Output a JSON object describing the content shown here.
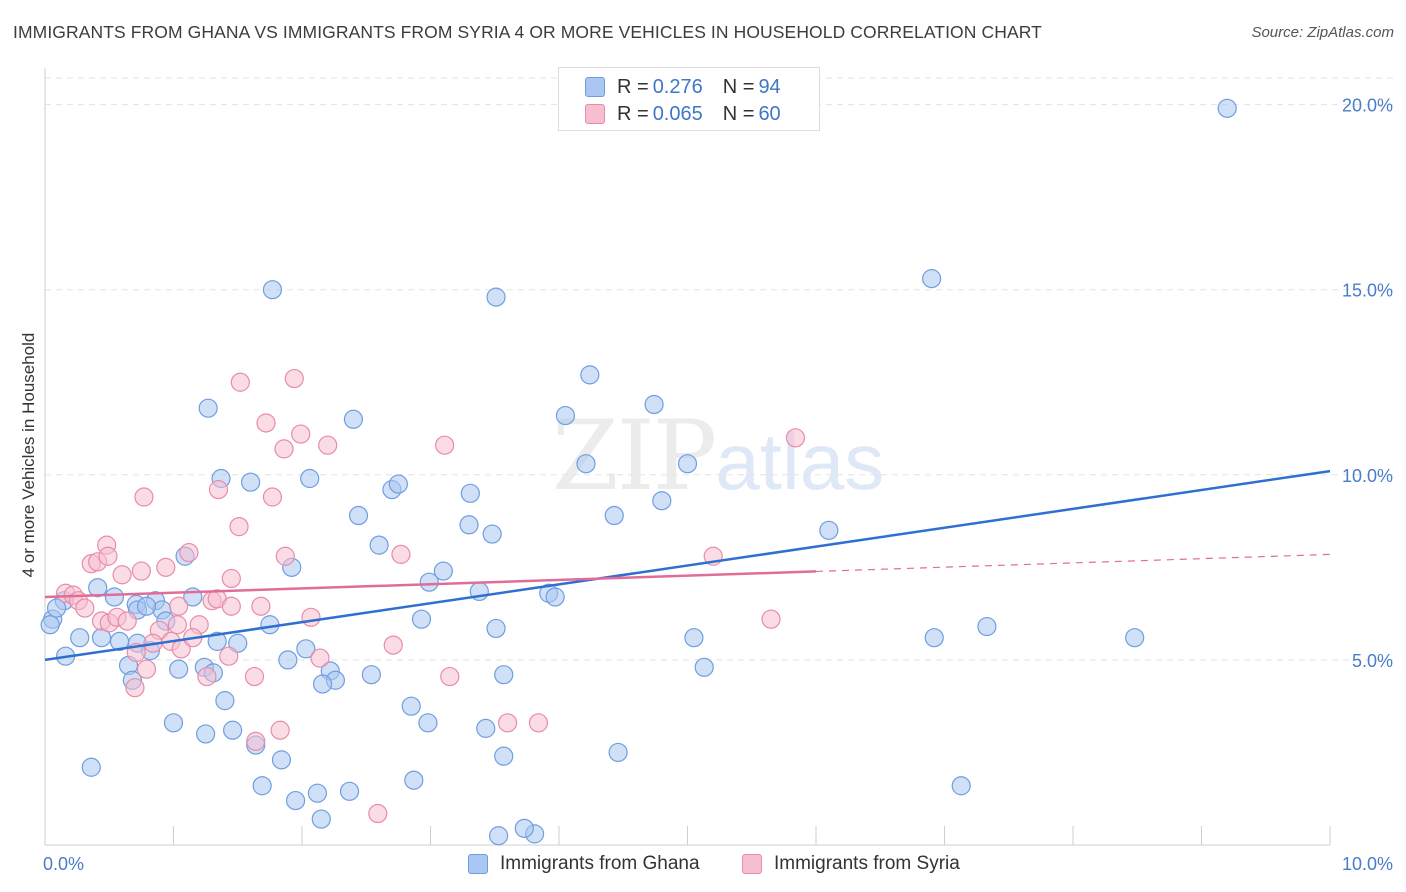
{
  "title": "IMMIGRANTS FROM GHANA VS IMMIGRANTS FROM SYRIA 4 OR MORE VEHICLES IN HOUSEHOLD CORRELATION CHART",
  "source": "Source: ZipAtlas.com",
  "watermark": {
    "zip": "ZIP",
    "atlas": "atlas"
  },
  "legend": {
    "rows": [
      {
        "r_label": "R =",
        "r_value": "0.276",
        "n_label": "N =",
        "n_value": "94"
      },
      {
        "r_label": "R =",
        "r_value": "0.065",
        "n_label": "N =",
        "n_value": "60"
      }
    ]
  },
  "colors": {
    "ghana_fill": "#a9c7f0",
    "ghana_stroke": "#6f9ee0",
    "ghana_line": "#2f6fcf",
    "syria_fill": "#f6bfd0",
    "syria_stroke": "#e98bab",
    "syria_line": "#e06d97",
    "grid": "#e3e3e3",
    "tick_label": "#4a7cc8"
  },
  "chart_data": {
    "type": "scatter",
    "title": "IMMIGRANTS FROM GHANA VS IMMIGRANTS FROM SYRIA 4 OR MORE VEHICLES IN HOUSEHOLD CORRELATION CHART",
    "xlabel": "",
    "ylabel": "4 or more Vehicles in Household",
    "xlim": [
      0,
      10
    ],
    "ylim": [
      0,
      20.8
    ],
    "x_tick_labels": [
      "0.0%",
      "10.0%"
    ],
    "y_ticks": [
      5,
      10,
      15,
      20
    ],
    "y_tick_labels": [
      "5.0%",
      "10.0%",
      "15.0%",
      "20.0%"
    ],
    "grid": true,
    "legend_position": "top-center",
    "series": [
      {
        "name": "Immigrants from Ghana",
        "trend": {
          "x": [
            0,
            10
          ],
          "y": [
            5.0,
            10.1
          ],
          "dashed_from": null
        },
        "points": [
          [
            9.2,
            19.9
          ],
          [
            6.9,
            15.3
          ],
          [
            1.77,
            15.0
          ],
          [
            3.51,
            14.8
          ],
          [
            4.24,
            12.7
          ],
          [
            1.27,
            11.8
          ],
          [
            4.74,
            11.9
          ],
          [
            4.05,
            11.6
          ],
          [
            2.4,
            11.5
          ],
          [
            1.37,
            9.9
          ],
          [
            1.6,
            9.8
          ],
          [
            2.06,
            9.9
          ],
          [
            2.7,
            9.6
          ],
          [
            2.75,
            9.75
          ],
          [
            3.31,
            9.5
          ],
          [
            4.21,
            10.3
          ],
          [
            4.8,
            9.3
          ],
          [
            5.0,
            10.3
          ],
          [
            2.44,
            8.9
          ],
          [
            3.3,
            8.65
          ],
          [
            3.48,
            8.4
          ],
          [
            4.43,
            8.9
          ],
          [
            6.1,
            8.5
          ],
          [
            1.09,
            7.8
          ],
          [
            2.6,
            8.1
          ],
          [
            1.92,
            7.5
          ],
          [
            3.1,
            7.4
          ],
          [
            2.99,
            7.1
          ],
          [
            3.38,
            6.85
          ],
          [
            3.92,
            6.8
          ],
          [
            3.97,
            6.7
          ],
          [
            0.41,
            6.95
          ],
          [
            0.54,
            6.7
          ],
          [
            0.15,
            6.6
          ],
          [
            0.71,
            6.5
          ],
          [
            0.86,
            6.6
          ],
          [
            0.91,
            6.35
          ],
          [
            1.15,
            6.7
          ],
          [
            0.94,
            6.05
          ],
          [
            0.72,
            6.35
          ],
          [
            0.79,
            6.45
          ],
          [
            2.93,
            6.1
          ],
          [
            3.51,
            5.85
          ],
          [
            0.27,
            5.6
          ],
          [
            0.44,
            5.6
          ],
          [
            0.58,
            5.5
          ],
          [
            0.72,
            5.45
          ],
          [
            0.82,
            5.25
          ],
          [
            1.34,
            5.5
          ],
          [
            1.5,
            5.45
          ],
          [
            1.75,
            5.95
          ],
          [
            2.03,
            5.3
          ],
          [
            5.05,
            5.6
          ],
          [
            6.92,
            5.6
          ],
          [
            7.33,
            5.9
          ],
          [
            8.48,
            5.6
          ],
          [
            0.16,
            5.1
          ],
          [
            0.65,
            4.85
          ],
          [
            1.04,
            4.75
          ],
          [
            1.24,
            4.8
          ],
          [
            1.31,
            4.65
          ],
          [
            1.89,
            5.0
          ],
          [
            2.22,
            4.7
          ],
          [
            2.26,
            4.45
          ],
          [
            2.16,
            4.35
          ],
          [
            2.54,
            4.6
          ],
          [
            3.57,
            4.6
          ],
          [
            5.13,
            4.8
          ],
          [
            0.68,
            4.45
          ],
          [
            1.4,
            3.9
          ],
          [
            2.85,
            3.75
          ],
          [
            1.0,
            3.3
          ],
          [
            1.25,
            3.0
          ],
          [
            1.46,
            3.1
          ],
          [
            1.64,
            2.7
          ],
          [
            2.98,
            3.3
          ],
          [
            3.43,
            3.15
          ],
          [
            1.84,
            2.3
          ],
          [
            3.57,
            2.4
          ],
          [
            4.46,
            2.5
          ],
          [
            0.36,
            2.1
          ],
          [
            1.69,
            1.6
          ],
          [
            1.95,
            1.2
          ],
          [
            2.12,
            1.4
          ],
          [
            2.37,
            1.45
          ],
          [
            2.87,
            1.75
          ],
          [
            7.13,
            1.6
          ],
          [
            2.15,
            0.7
          ],
          [
            3.81,
            0.3
          ],
          [
            3.73,
            0.45
          ],
          [
            3.53,
            0.25
          ],
          [
            0.06,
            6.1
          ],
          [
            0.04,
            5.95
          ],
          [
            0.09,
            6.4
          ]
        ]
      },
      {
        "name": "Immigrants from Syria",
        "trend": {
          "x": [
            0,
            10
          ],
          "y": [
            6.7,
            7.85
          ],
          "dashed_from": 6.0
        },
        "points": [
          [
            1.52,
            12.5
          ],
          [
            1.94,
            12.6
          ],
          [
            1.72,
            11.4
          ],
          [
            1.99,
            11.1
          ],
          [
            2.2,
            10.8
          ],
          [
            1.86,
            10.7
          ],
          [
            3.11,
            10.8
          ],
          [
            5.84,
            11.0
          ],
          [
            1.35,
            9.6
          ],
          [
            1.77,
            9.4
          ],
          [
            0.77,
            9.4
          ],
          [
            1.51,
            8.6
          ],
          [
            0.48,
            8.1
          ],
          [
            1.12,
            7.9
          ],
          [
            0.94,
            7.5
          ],
          [
            1.87,
            7.8
          ],
          [
            2.77,
            7.85
          ],
          [
            5.2,
            7.8
          ],
          [
            0.36,
            7.6
          ],
          [
            0.41,
            7.65
          ],
          [
            0.49,
            7.8
          ],
          [
            0.6,
            7.3
          ],
          [
            0.75,
            7.4
          ],
          [
            1.45,
            7.2
          ],
          [
            0.16,
            6.8
          ],
          [
            0.22,
            6.75
          ],
          [
            0.26,
            6.6
          ],
          [
            0.31,
            6.4
          ],
          [
            1.04,
            6.45
          ],
          [
            1.3,
            6.6
          ],
          [
            1.34,
            6.65
          ],
          [
            1.45,
            6.45
          ],
          [
            1.68,
            6.45
          ],
          [
            0.44,
            6.05
          ],
          [
            0.5,
            6.0
          ],
          [
            0.56,
            6.15
          ],
          [
            0.64,
            6.05
          ],
          [
            0.89,
            5.8
          ],
          [
            1.03,
            5.95
          ],
          [
            1.2,
            5.95
          ],
          [
            2.07,
            6.15
          ],
          [
            5.65,
            6.1
          ],
          [
            0.84,
            5.45
          ],
          [
            0.98,
            5.5
          ],
          [
            1.06,
            5.3
          ],
          [
            1.15,
            5.6
          ],
          [
            1.43,
            5.1
          ],
          [
            2.14,
            5.05
          ],
          [
            2.71,
            5.4
          ],
          [
            0.71,
            5.2
          ],
          [
            0.79,
            4.75
          ],
          [
            1.26,
            4.55
          ],
          [
            1.63,
            4.55
          ],
          [
            3.15,
            4.55
          ],
          [
            0.7,
            4.25
          ],
          [
            1.64,
            2.8
          ],
          [
            1.83,
            3.1
          ],
          [
            3.6,
            3.3
          ],
          [
            3.84,
            3.3
          ],
          [
            2.59,
            0.85
          ]
        ]
      }
    ]
  },
  "bottom_legend": {
    "ghana": "Immigrants from Ghana",
    "syria": "Immigrants from Syria"
  }
}
